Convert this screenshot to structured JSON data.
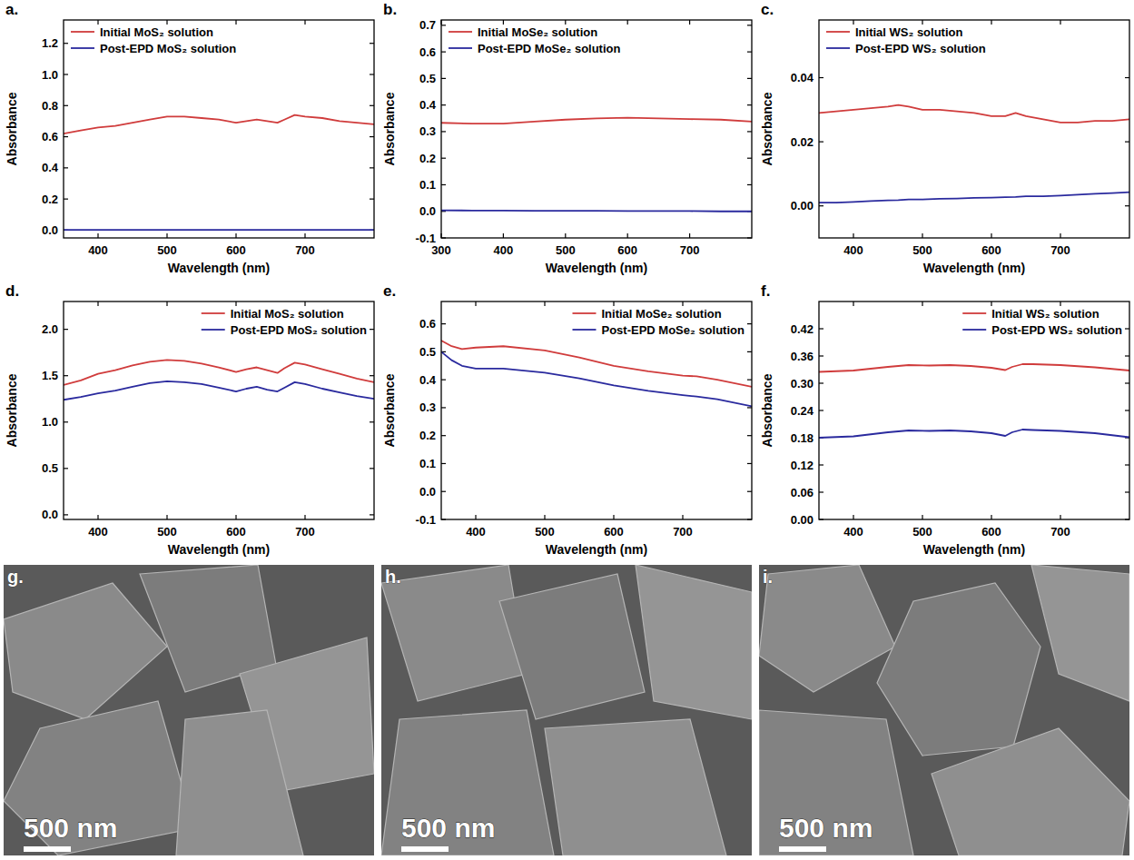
{
  "chart_data": [
    {
      "type": "line",
      "title": "a.",
      "x_label": "Wavelength (nm)",
      "y_label": "Absorbance",
      "legend": "upper left",
      "x": [
        350,
        375,
        400,
        425,
        450,
        475,
        500,
        525,
        550,
        575,
        600,
        615,
        630,
        645,
        660,
        670,
        685,
        700,
        725,
        750,
        775,
        800
      ],
      "xlim": [
        350,
        800
      ],
      "xticks": [
        400,
        500,
        600,
        700
      ],
      "ylim": [
        -0.05,
        1.35
      ],
      "yticks": [
        {
          "value": 0,
          "label": "0.0"
        },
        0.2,
        0.4,
        0.6,
        0.8,
        {
          "value": 1,
          "label": "1.0"
        },
        1.2
      ],
      "series": [
        {
          "name": "Initial MoS₂ solution",
          "color": "#d03c3c",
          "values": [
            0.62,
            0.64,
            0.66,
            0.67,
            0.69,
            0.71,
            0.73,
            0.73,
            0.72,
            0.71,
            0.69,
            0.7,
            0.71,
            0.7,
            0.69,
            0.71,
            0.74,
            0.73,
            0.72,
            0.7,
            0.69,
            0.68
          ]
        },
        {
          "name": "Post-EPD MoS₂ solution",
          "color": "#2a2a9e",
          "values": [
            0.002,
            0.002,
            0.002,
            0.002,
            0.002,
            0.002,
            0.002,
            0.002,
            0.002,
            0.002,
            0.002,
            0.002,
            0.002,
            0.002,
            0.002,
            0.002,
            0.002,
            0.002,
            0.002,
            0.002,
            0.002,
            0.002
          ]
        }
      ]
    },
    {
      "type": "line",
      "title": "b.",
      "x_label": "Wavelength (nm)",
      "y_label": "Absorbance",
      "legend": "upper left",
      "x": [
        300,
        350,
        400,
        450,
        500,
        550,
        600,
        650,
        700,
        750,
        800
      ],
      "xlim": [
        300,
        800
      ],
      "xticks": [
        300,
        400,
        500,
        600,
        700
      ],
      "ylim": [
        -0.1,
        0.72
      ],
      "yticks": [
        -0.1,
        {
          "value": 0,
          "label": "0.0"
        },
        0.1,
        0.2,
        0.3,
        0.4,
        0.5,
        0.6,
        0.7
      ],
      "series": [
        {
          "name": "Initial MoSe₂ solution",
          "color": "#d03c3c",
          "values": [
            0.333,
            0.33,
            0.33,
            0.338,
            0.345,
            0.35,
            0.352,
            0.35,
            0.347,
            0.345,
            0.338
          ]
        },
        {
          "name": "Post-EPD MoSe₂ solution",
          "color": "#2a2a9e",
          "values": [
            0.004,
            0.003,
            0.003,
            0.002,
            0.002,
            0.002,
            0.001,
            0.001,
            0.001,
            0.0,
            0.0
          ]
        }
      ]
    },
    {
      "type": "line",
      "title": "c.",
      "x_label": "Wavelength (nm)",
      "y_label": "Absorbance",
      "legend": "upper left",
      "x": [
        350,
        375,
        400,
        425,
        450,
        465,
        480,
        500,
        525,
        550,
        575,
        600,
        620,
        635,
        650,
        675,
        700,
        725,
        750,
        775,
        800
      ],
      "xlim": [
        350,
        800
      ],
      "xticks": [
        400,
        500,
        600,
        700
      ],
      "ylim": [
        -0.01,
        0.058
      ],
      "yticks": [
        {
          "value": 0,
          "label": "0.00"
        },
        0.02,
        0.04
      ],
      "series": [
        {
          "name": "Initial WS₂ solution",
          "color": "#d03c3c",
          "values": [
            0.029,
            0.0295,
            0.03,
            0.0305,
            0.031,
            0.0315,
            0.031,
            0.03,
            0.03,
            0.0295,
            0.029,
            0.028,
            0.028,
            0.029,
            0.028,
            0.027,
            0.026,
            0.026,
            0.0265,
            0.0265,
            0.027
          ]
        },
        {
          "name": "Post-EPD WS₂ solution",
          "color": "#2a2a9e",
          "values": [
            0.001,
            0.001,
            0.0012,
            0.0015,
            0.0017,
            0.0018,
            0.002,
            0.002,
            0.0022,
            0.0023,
            0.0025,
            0.0026,
            0.0027,
            0.0028,
            0.003,
            0.003,
            0.0032,
            0.0035,
            0.0038,
            0.004,
            0.0043
          ]
        }
      ]
    },
    {
      "type": "line",
      "title": "d.",
      "x_label": "Wavelength (nm)",
      "y_label": "Absorbance",
      "legend": "upper right",
      "x": [
        350,
        375,
        400,
        425,
        450,
        475,
        500,
        525,
        550,
        575,
        600,
        615,
        630,
        645,
        660,
        670,
        685,
        700,
        725,
        750,
        775,
        800
      ],
      "xlim": [
        350,
        800
      ],
      "xticks": [
        400,
        500,
        600,
        700
      ],
      "ylim": [
        -0.05,
        2.3
      ],
      "yticks": [
        {
          "value": 0,
          "label": "0.0"
        },
        0.5,
        {
          "value": 1,
          "label": "1.0"
        },
        1.5,
        {
          "value": 2,
          "label": "2.0"
        }
      ],
      "series": [
        {
          "name": "Initial MoS₂ solution",
          "color": "#d03c3c",
          "values": [
            1.4,
            1.45,
            1.52,
            1.56,
            1.61,
            1.65,
            1.67,
            1.66,
            1.63,
            1.59,
            1.54,
            1.57,
            1.59,
            1.56,
            1.53,
            1.58,
            1.64,
            1.62,
            1.57,
            1.52,
            1.47,
            1.43
          ]
        },
        {
          "name": "Post-EPD MoS₂ solution",
          "color": "#2a2a9e",
          "values": [
            1.24,
            1.27,
            1.31,
            1.34,
            1.38,
            1.42,
            1.44,
            1.43,
            1.41,
            1.37,
            1.33,
            1.36,
            1.38,
            1.35,
            1.33,
            1.37,
            1.43,
            1.41,
            1.36,
            1.32,
            1.28,
            1.25
          ]
        }
      ]
    },
    {
      "type": "line",
      "title": "e.",
      "x_label": "Wavelength (nm)",
      "y_label": "Absorbance",
      "legend": "upper right",
      "x": [
        350,
        365,
        380,
        400,
        440,
        500,
        550,
        600,
        650,
        700,
        720,
        750,
        800
      ],
      "xlim": [
        350,
        800
      ],
      "xticks": [
        400,
        500,
        600,
        700
      ],
      "ylim": [
        -0.1,
        0.68
      ],
      "yticks": [
        -0.1,
        {
          "value": 0,
          "label": "0.0"
        },
        0.1,
        0.2,
        0.3,
        0.4,
        0.5,
        0.6
      ],
      "series": [
        {
          "name": "Initial MoSe₂ solution",
          "color": "#d03c3c",
          "values": [
            0.54,
            0.52,
            0.51,
            0.515,
            0.52,
            0.505,
            0.48,
            0.45,
            0.43,
            0.415,
            0.412,
            0.4,
            0.375
          ]
        },
        {
          "name": "Post-EPD MoSe₂ solution",
          "color": "#2a2a9e",
          "values": [
            0.5,
            0.47,
            0.45,
            0.44,
            0.44,
            0.425,
            0.405,
            0.38,
            0.36,
            0.345,
            0.34,
            0.33,
            0.305
          ]
        }
      ]
    },
    {
      "type": "line",
      "title": "f.",
      "x_label": "Wavelength (nm)",
      "y_label": "Absorbance",
      "legend": "upper right",
      "x": [
        350,
        400,
        450,
        480,
        510,
        540,
        570,
        600,
        620,
        630,
        645,
        660,
        700,
        750,
        800
      ],
      "xlim": [
        350,
        800
      ],
      "xticks": [
        400,
        500,
        600,
        700
      ],
      "ylim": [
        0,
        0.48
      ],
      "yticks": [
        {
          "value": 0,
          "label": "0.00"
        },
        0.06,
        0.12,
        0.18,
        0.24,
        {
          "value": 0.3,
          "label": "0.30"
        },
        0.36,
        0.42
      ],
      "series": [
        {
          "name": "Initial WS₂ solution",
          "color": "#d03c3c",
          "values": [
            0.325,
            0.328,
            0.336,
            0.34,
            0.339,
            0.34,
            0.338,
            0.334,
            0.329,
            0.336,
            0.342,
            0.342,
            0.34,
            0.335,
            0.328
          ]
        },
        {
          "name": "Post-EPD WS₂ solution",
          "color": "#2a2a9e",
          "values": [
            0.18,
            0.183,
            0.192,
            0.196,
            0.195,
            0.196,
            0.194,
            0.19,
            0.184,
            0.192,
            0.198,
            0.197,
            0.195,
            0.19,
            0.181
          ]
        }
      ]
    }
  ],
  "images": [
    {
      "label": "g.",
      "scale_bar": "500 nm"
    },
    {
      "label": "h.",
      "scale_bar": "500 nm"
    },
    {
      "label": "i.",
      "scale_bar": "500 nm"
    }
  ]
}
